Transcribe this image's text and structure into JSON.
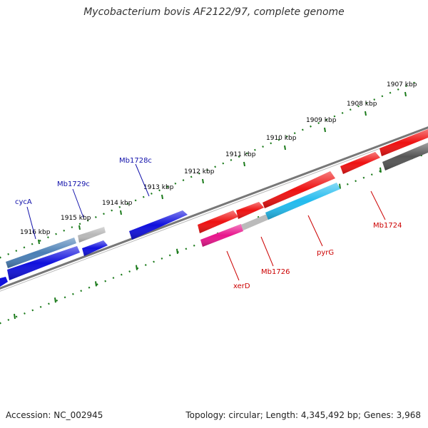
{
  "title": "Mycobacterium bovis AF2122/97, complete genome",
  "footer": {
    "accession": "Accession: NC_002945",
    "summary": "Topology: circular; Length: 4,345,492 bp; Genes: 3,968"
  },
  "colors": {
    "backbone": "#777777",
    "ticks": "#1a7a1a",
    "label_top_strand": "#1010aa",
    "label_bottom_strand": "#cc0000"
  },
  "scale": {
    "ticks": [
      "1907 kbp",
      "1908 kbp",
      "1909 kbp",
      "1910 kbp",
      "1911 kbp",
      "1912 kbp",
      "1913 kbp",
      "1914 kbp",
      "1915 kbp",
      "1916 kbp"
    ]
  },
  "features": [
    {
      "name": "cycA",
      "color": "#4a7fb5"
    },
    {
      "name": "Mb1729c",
      "color": "#b8b8b8"
    },
    {
      "name": "Mb1728c",
      "color": "#1010dd"
    },
    {
      "name": "xerD",
      "color": "#e8158c"
    },
    {
      "name": "Mb1726",
      "color": "#ee1111"
    },
    {
      "name": "pyrG",
      "color": "#22bbee"
    },
    {
      "name": "Mb1724",
      "color": "#ee1111"
    }
  ]
}
